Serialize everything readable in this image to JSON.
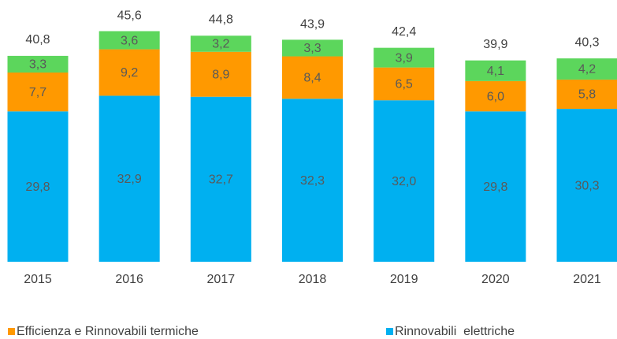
{
  "chart_data": {
    "type": "stacked_bar",
    "categories": [
      "2015",
      "2016",
      "2017",
      "2018",
      "2019",
      "2020",
      "2021"
    ],
    "series": [
      {
        "name": "Rinnovabili  elettriche",
        "color": "#00b0f0",
        "values": [
          29.8,
          32.9,
          32.7,
          32.3,
          32.0,
          29.8,
          30.3
        ],
        "value_labels": [
          "29,8",
          "32,9",
          "32,7",
          "32,3",
          "32,0",
          "29,8",
          "30,3"
        ]
      },
      {
        "name": "Efficienza e Rinnovabili termiche",
        "color": "#ff9900",
        "values": [
          7.7,
          9.2,
          8.9,
          8.4,
          6.5,
          6.0,
          5.8
        ],
        "value_labels": [
          "7,7",
          "9,2",
          "8,9",
          "8,4",
          "6,5",
          "6,0",
          "5,8"
        ]
      },
      {
        "color": "#5cd65c",
        "values": [
          3.3,
          3.6,
          3.2,
          3.3,
          3.9,
          4.1,
          4.2
        ],
        "value_labels": [
          "3,3",
          "3,6",
          "3,2",
          "3,3",
          "3,9",
          "4,1",
          "4,2"
        ]
      }
    ],
    "totals": [
      40.8,
      45.6,
      44.8,
      43.9,
      42.4,
      39.9,
      40.3
    ],
    "total_labels": [
      "40,8",
      "45,6",
      "44,8",
      "43,9",
      "42,4",
      "39,9",
      "40,3"
    ],
    "legend_order": [
      1,
      0
    ],
    "ylim": [
      0,
      50
    ]
  }
}
